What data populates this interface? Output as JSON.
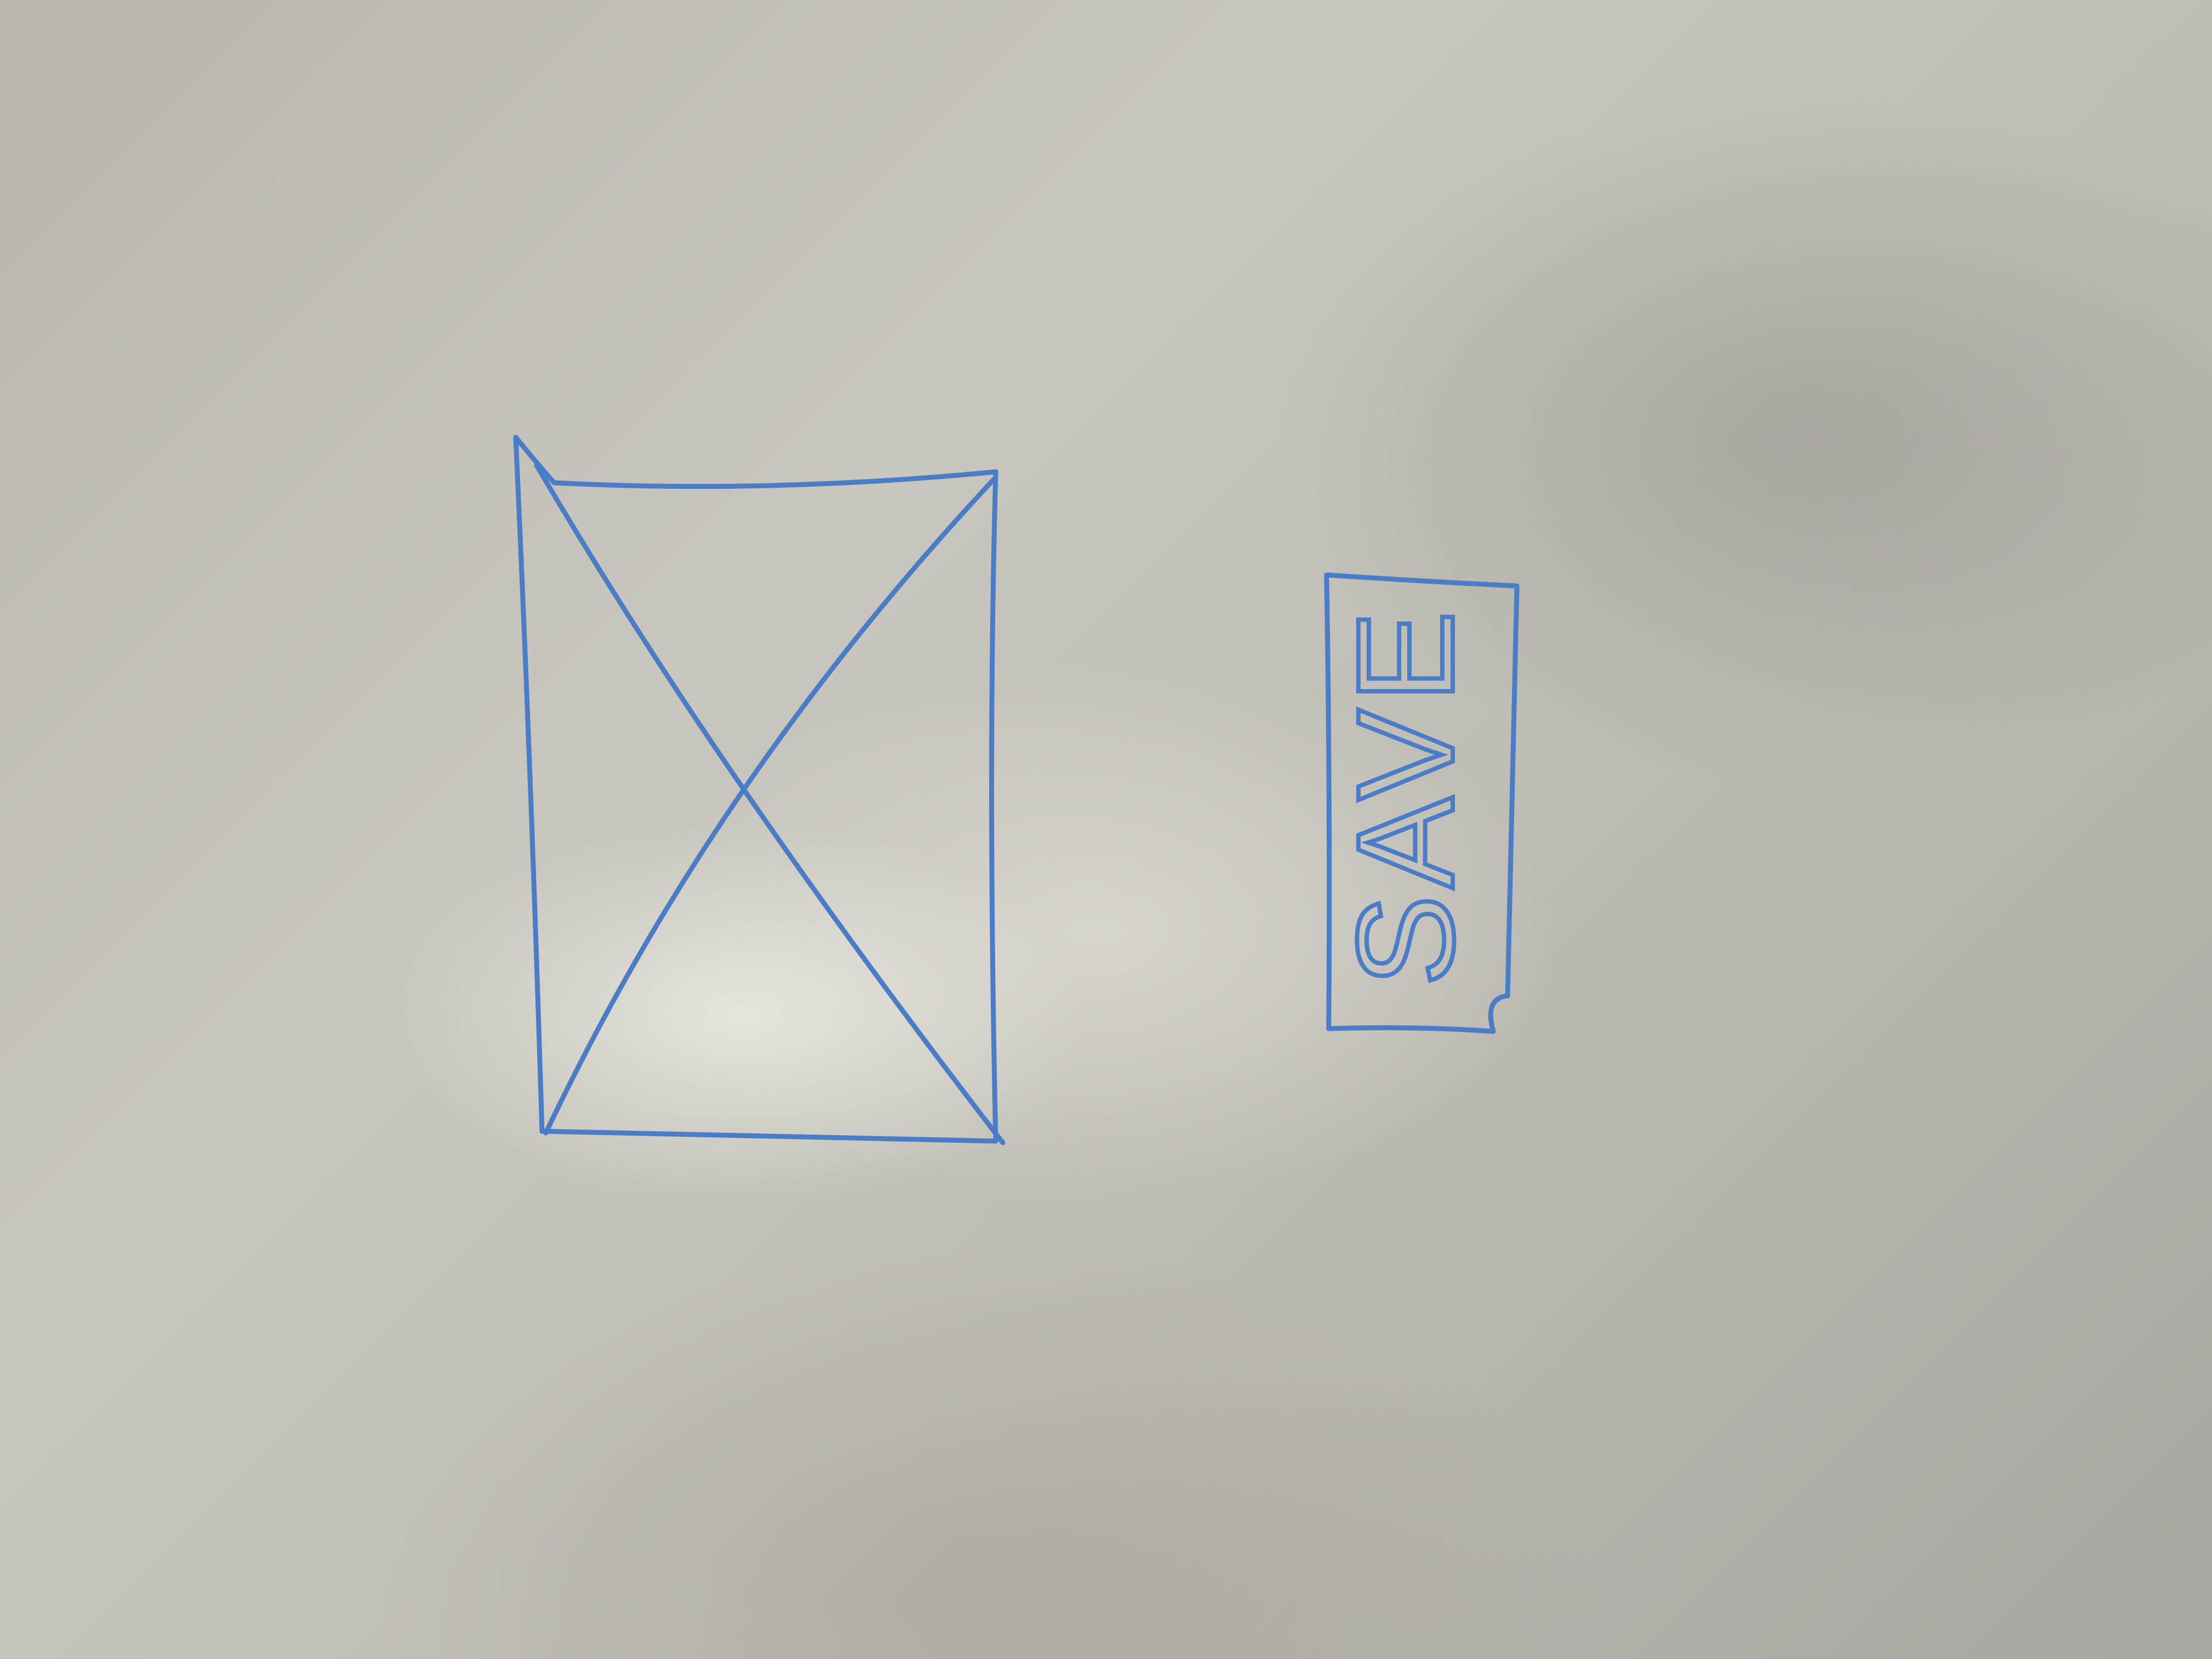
{
  "button": {
    "label": "SAVE"
  }
}
